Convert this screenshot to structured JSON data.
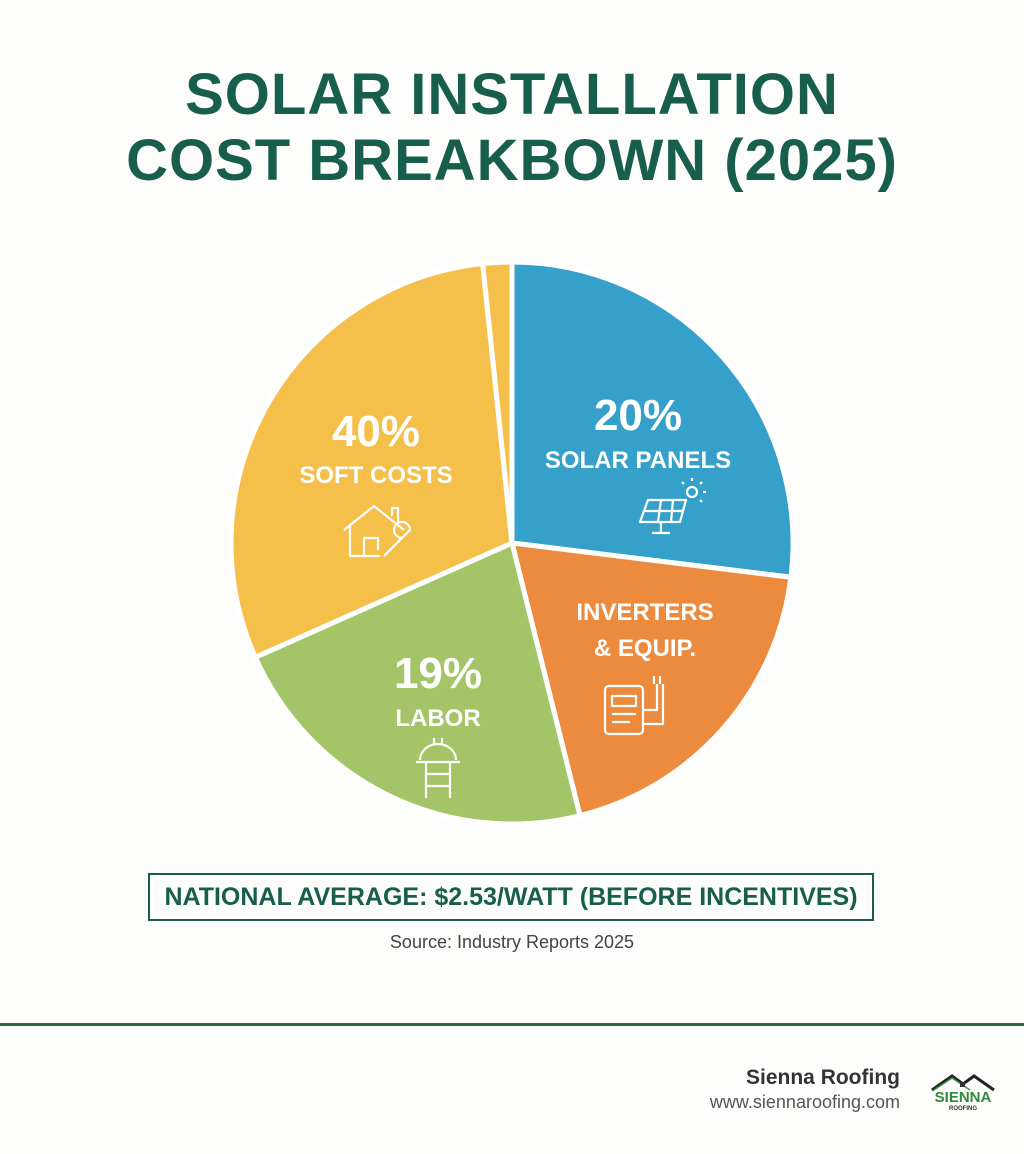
{
  "chart_data": {
    "type": "pie",
    "title": "SOLAR INSTALLATION COST BREAKBOWN (2025)",
    "slices": [
      {
        "label": "SOLAR PANELS",
        "percent_label": "20%",
        "value": 20,
        "color": "#35a0c9",
        "icon": "solar-panel-icon"
      },
      {
        "label": "INVERTERS & EQUIP.",
        "percent_label": "",
        "value": null,
        "color": "#ec8a3e",
        "icon": "inverter-icon"
      },
      {
        "label": "LABOR",
        "percent_label": "19%",
        "value": 19,
        "color": "#a3c567",
        "icon": "hard-hat-ladder-icon"
      },
      {
        "label": "SOFT COSTS",
        "percent_label": "40%",
        "value": 40,
        "color": "#f5c04a",
        "icon": "house-wrench-icon"
      },
      {
        "label": "",
        "percent_label": "",
        "value": null,
        "color": "#f5c04a",
        "icon": ""
      }
    ]
  },
  "title_line1": "SOLAR INSTALLATION",
  "title_line2": "COST BREAKBOWN (2025)",
  "note": "NATIONAL AVERAGE: $2.53/WATT (BEFORE INCENTIVES)",
  "source": "Source: Industry Reports 2025",
  "brand": {
    "name": "Sienna Roofing",
    "url": "www.siennaroofing.com",
    "logo_text": "SIENNA ROOFING"
  },
  "colors": {
    "title": "#175e4c",
    "rule": "#2f6a3e"
  }
}
